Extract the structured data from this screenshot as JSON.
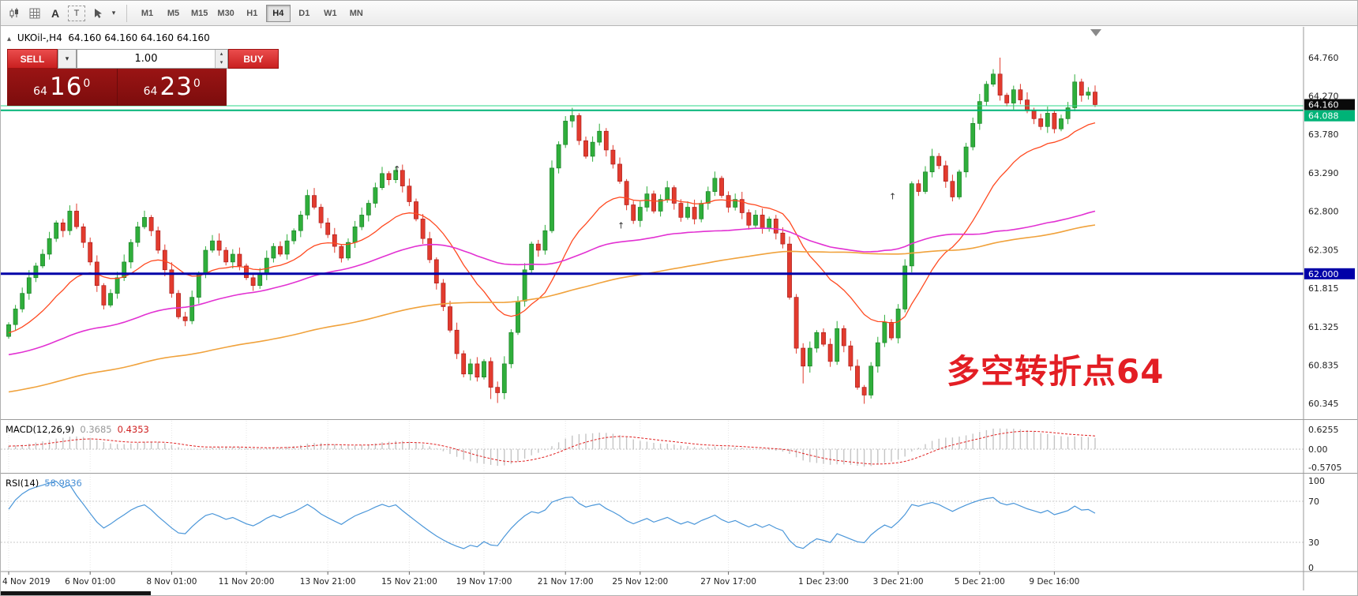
{
  "toolbar": {
    "icon_labels": {
      "text_a": "A",
      "text_t": "T"
    },
    "timeframes": [
      "M1",
      "M5",
      "M15",
      "M30",
      "H1",
      "H4",
      "D1",
      "W1",
      "MN"
    ],
    "active_timeframe": "H4"
  },
  "icons": {
    "collapse": "▴",
    "chevron_down": "▾",
    "chevron_up": "▴",
    "arrow_mark": "↑"
  },
  "chart": {
    "header": {
      "symbol_period": "UKOil-,H4",
      "ohlc": "64.160 64.160 64.160 64.160"
    },
    "trade_panel": {
      "sell_label": "SELL",
      "buy_label": "BUY",
      "volume": "1.00",
      "bid_small": "64",
      "bid_big": "16",
      "bid_sup": "0",
      "ask_small": "64",
      "ask_big": "23",
      "ask_sup": "0"
    },
    "annotation": "多空转折点64",
    "price_axis": {
      "ticks": [
        "64.760",
        "64.270",
        "63.780",
        "63.290",
        "62.800",
        "62.305",
        "61.815",
        "61.325",
        "60.835",
        "60.345"
      ],
      "current_price": "64.160"
    },
    "time_axis": {
      "labels": [
        {
          "text": "4 Nov 2019",
          "i": 0
        },
        {
          "text": "6 Nov 01:00",
          "i": 12
        },
        {
          "text": "8 Nov 01:00",
          "i": 24
        },
        {
          "text": "11 Nov 20:00",
          "i": 35
        },
        {
          "text": "13 Nov 21:00",
          "i": 47
        },
        {
          "text": "15 Nov 21:00",
          "i": 59
        },
        {
          "text": "19 Nov 17:00",
          "i": 70
        },
        {
          "text": "21 Nov 17:00",
          "i": 82
        },
        {
          "text": "25 Nov 12:00",
          "i": 93
        },
        {
          "text": "27 Nov 17:00",
          "i": 106
        },
        {
          "text": "1 Dec 23:00",
          "i": 120
        },
        {
          "text": "3 Dec 21:00",
          "i": 131
        },
        {
          "text": "5 Dec 21:00",
          "i": 143
        },
        {
          "text": "9 Dec 16:00",
          "i": 154
        }
      ]
    }
  },
  "macd_panel": {
    "label": "MACD(12,26,9)",
    "value_main": "0.3685",
    "value_signal": "0.4353",
    "axis": [
      "0.6255",
      "0.00",
      "-0.5705"
    ]
  },
  "rsi_panel": {
    "label": "RSI(14)",
    "value": "58.9836",
    "axis": [
      "100",
      "70",
      "30",
      "0"
    ]
  },
  "chart_data": {
    "type": "candlestick",
    "symbol": "UKOil-",
    "period": "H4",
    "open_first": 61.2,
    "closes": [
      61.35,
      61.55,
      61.75,
      61.95,
      62.1,
      62.25,
      62.45,
      62.65,
      62.55,
      62.8,
      62.6,
      62.4,
      62.15,
      61.85,
      61.6,
      61.75,
      61.95,
      62.15,
      62.4,
      62.6,
      62.72,
      62.55,
      62.3,
      62.05,
      61.75,
      61.45,
      61.4,
      61.7,
      62.0,
      62.3,
      62.42,
      62.3,
      62.15,
      62.25,
      62.1,
      61.95,
      61.85,
      62.0,
      62.2,
      62.35,
      62.25,
      62.42,
      62.55,
      62.75,
      63.0,
      62.85,
      62.65,
      62.5,
      62.35,
      62.2,
      62.4,
      62.6,
      62.75,
      62.9,
      63.1,
      63.28,
      63.2,
      63.32,
      63.12,
      62.92,
      62.7,
      62.45,
      62.18,
      61.88,
      61.58,
      61.28,
      60.98,
      60.72,
      60.85,
      60.68,
      60.88,
      60.55,
      60.48,
      60.85,
      61.25,
      61.65,
      62.05,
      62.38,
      62.3,
      62.55,
      63.35,
      63.65,
      63.95,
      64.02,
      63.7,
      63.5,
      63.68,
      63.82,
      63.58,
      63.4,
      63.18,
      62.88,
      62.68,
      62.85,
      63.02,
      62.8,
      62.95,
      63.1,
      62.9,
      62.72,
      62.85,
      62.7,
      62.9,
      63.05,
      63.22,
      63.0,
      62.85,
      62.95,
      62.78,
      62.62,
      62.75,
      62.58,
      62.7,
      62.52,
      62.38,
      61.7,
      61.05,
      60.82,
      61.05,
      61.25,
      61.1,
      60.88,
      61.3,
      61.08,
      60.82,
      60.55,
      60.45,
      60.82,
      61.12,
      61.38,
      61.18,
      61.55,
      62.1,
      63.15,
      63.05,
      63.3,
      63.5,
      63.38,
      63.18,
      62.98,
      63.3,
      63.62,
      63.92,
      64.2,
      64.42,
      64.55,
      64.28,
      64.18,
      64.35,
      64.22,
      64.08,
      63.98,
      63.88,
      64.05,
      63.85,
      63.98,
      64.12,
      64.45,
      64.28,
      64.32,
      64.16
    ],
    "wick_overrides": [
      {
        "i": 146,
        "h": 64.76
      },
      {
        "i": 83,
        "h": 64.12
      },
      {
        "i": 72,
        "l": 60.35
      },
      {
        "i": 71,
        "l": 60.4
      },
      {
        "i": 126,
        "l": 60.34
      },
      {
        "i": 117,
        "l": 60.6
      }
    ],
    "prehistory": {
      "start": 59.6,
      "end": 61.35,
      "count": 130
    },
    "colors": {
      "up": "#2fae3b",
      "down": "#e23b2e"
    },
    "moving_averages": [
      {
        "name": "fast",
        "type": "ema",
        "period": 20,
        "color": "#ff4a21",
        "width": 1.3
      },
      {
        "name": "mid",
        "type": "sma",
        "period": 60,
        "color": "#e231d2",
        "width": 1.6
      },
      {
        "name": "slow",
        "type": "sma",
        "period": 130,
        "color": "#f0a23c",
        "width": 1.6
      }
    ],
    "hlines": [
      {
        "name": "bid-line",
        "price": 64.145,
        "color": "#2bd889",
        "width": 1
      },
      {
        "name": "green-hline",
        "price": 64.088,
        "color": "#00b377",
        "width": 2,
        "label": "64.088",
        "label_dy": 7
      },
      {
        "name": "blue-hline",
        "price": 62.0,
        "color": "#0000a8",
        "width": 3,
        "label": "62.000",
        "label_dy": 0
      }
    ],
    "macd": {
      "fast": 12,
      "slow": 26,
      "signal_period": 9,
      "hist_color": "#c4c4c4",
      "signal_color": "#e02020"
    },
    "rsi": {
      "period": 14,
      "color": "#4a96d9",
      "levels": [
        30,
        70
      ]
    },
    "marks": [
      {
        "i": 57,
        "price": 63.3
      },
      {
        "i": 90,
        "price": 62.58
      },
      {
        "i": 130,
        "price": 62.95
      }
    ],
    "y_range": {
      "min": 60.15,
      "max": 65.15
    }
  }
}
